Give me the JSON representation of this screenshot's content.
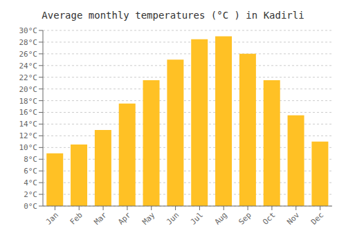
{
  "chart_data": {
    "type": "bar",
    "title": "Average monthly temperatures (°C ) in Kadirli",
    "categories": [
      "Jan",
      "Feb",
      "Mar",
      "Apr",
      "May",
      "Jun",
      "Jul",
      "Aug",
      "Sep",
      "Oct",
      "Nov",
      "Dec"
    ],
    "values": [
      9.0,
      10.5,
      13.0,
      17.5,
      21.5,
      25.0,
      28.5,
      29.0,
      26.0,
      21.5,
      15.5,
      11.0
    ],
    "color": "#FFC125",
    "ylim": [
      0,
      30
    ],
    "yticks": [
      {
        "value": 0,
        "label": "0°C"
      },
      {
        "value": 2,
        "label": "2°C"
      },
      {
        "value": 4,
        "label": "4°C"
      },
      {
        "value": 6,
        "label": "6°C"
      },
      {
        "value": 8,
        "label": "8°C"
      },
      {
        "value": 10,
        "label": "10°C"
      },
      {
        "value": 12,
        "label": "12°C"
      },
      {
        "value": 14,
        "label": "14°C"
      },
      {
        "value": 16,
        "label": "16°C"
      },
      {
        "value": 18,
        "label": "18°C"
      },
      {
        "value": 20,
        "label": "20°C"
      },
      {
        "value": 22,
        "label": "22°C"
      },
      {
        "value": 24,
        "label": "24°C"
      },
      {
        "value": 26,
        "label": "26°C"
      },
      {
        "value": 28,
        "label": "28°C"
      },
      {
        "value": 30,
        "label": "30°C"
      }
    ],
    "grid": true
  }
}
